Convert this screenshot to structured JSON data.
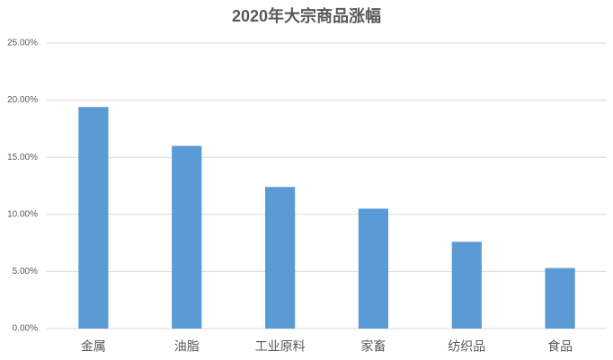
{
  "chart_data": {
    "type": "bar",
    "title": "2020年大宗商品涨幅",
    "categories": [
      "金属",
      "油脂",
      "工业原料",
      "家畜",
      "纺织品",
      "食品"
    ],
    "values": [
      19.4,
      16.0,
      12.4,
      10.5,
      7.6,
      5.3
    ],
    "color": "#5b9bd5",
    "ylim": [
      0,
      25
    ],
    "yticks": [
      {
        "value": 0,
        "label": "0.00%"
      },
      {
        "value": 5,
        "label": "5.00%"
      },
      {
        "value": 10,
        "label": "10.00%"
      },
      {
        "value": 15,
        "label": "15.00%"
      },
      {
        "value": 20,
        "label": "20.00%"
      },
      {
        "value": 25,
        "label": "25.00%"
      }
    ],
    "grid": true
  }
}
